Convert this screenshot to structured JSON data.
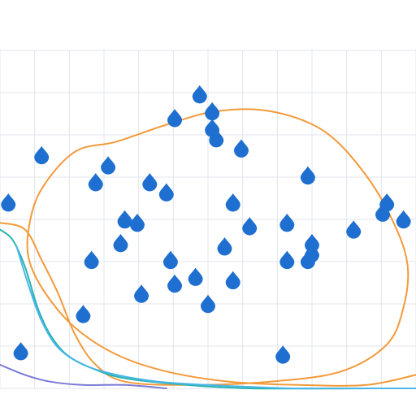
{
  "chart_data": {
    "type": "scatter",
    "title_parts": [],
    "xlabel": "",
    "ylabel": "",
    "grid": true,
    "xlim": [
      0,
      100
    ],
    "ylim": [
      0,
      100
    ],
    "x_ticks": [],
    "series": [
      {
        "kind": "points",
        "color": "#1f6fd0",
        "points": [
          [
            48,
            87
          ],
          [
            51,
            82
          ],
          [
            42,
            80
          ],
          [
            51,
            77
          ],
          [
            52,
            74
          ],
          [
            58,
            71
          ],
          [
            10,
            69
          ],
          [
            26,
            66
          ],
          [
            23,
            61
          ],
          [
            36,
            61
          ],
          [
            40,
            58
          ],
          [
            74,
            63
          ],
          [
            2,
            55
          ],
          [
            56,
            55
          ],
          [
            93,
            55
          ],
          [
            92,
            52
          ],
          [
            30,
            50
          ],
          [
            33,
            49
          ],
          [
            69,
            49
          ],
          [
            60,
            48
          ],
          [
            85,
            47
          ],
          [
            75,
            43
          ],
          [
            54,
            42
          ],
          [
            29,
            43
          ],
          [
            75,
            40
          ],
          [
            22,
            38
          ],
          [
            41,
            38
          ],
          [
            69,
            38
          ],
          [
            74,
            38
          ],
          [
            47,
            33
          ],
          [
            56,
            32
          ],
          [
            42,
            31
          ],
          [
            34,
            28
          ],
          [
            50,
            25
          ],
          [
            20,
            22
          ],
          [
            5,
            11
          ],
          [
            68,
            10
          ],
          [
            97,
            50
          ]
        ]
      },
      {
        "kind": "line",
        "color": "#f39a3a",
        "points": [
          [
            0,
            49
          ],
          [
            6,
            47
          ],
          [
            10,
            38
          ],
          [
            14,
            28
          ],
          [
            18,
            16
          ],
          [
            23,
            7
          ],
          [
            30,
            2
          ],
          [
            45,
            1
          ],
          [
            65,
            2
          ],
          [
            82,
            5
          ],
          [
            93,
            13
          ],
          [
            97,
            24
          ],
          [
            98,
            36
          ],
          [
            95,
            48
          ],
          [
            88,
            63
          ],
          [
            78,
            76
          ],
          [
            65,
            82
          ],
          [
            52,
            82
          ],
          [
            40,
            78
          ],
          [
            28,
            73
          ],
          [
            18,
            70
          ],
          [
            10,
            59
          ],
          [
            7,
            48
          ],
          [
            7,
            38
          ],
          [
            11,
            28
          ],
          [
            18,
            18
          ],
          [
            28,
            10
          ],
          [
            40,
            5
          ],
          [
            55,
            2
          ],
          [
            72,
            1
          ],
          [
            88,
            1
          ],
          [
            100,
            4
          ]
        ]
      },
      {
        "kind": "line",
        "color": "#27b3b0",
        "points": [
          [
            0,
            47
          ],
          [
            3,
            44
          ],
          [
            6,
            36
          ],
          [
            9,
            24
          ],
          [
            12,
            16
          ],
          [
            16,
            10
          ],
          [
            22,
            6
          ],
          [
            30,
            3
          ],
          [
            45,
            1
          ],
          [
            60,
            0
          ],
          [
            80,
            0
          ],
          [
            100,
            0
          ]
        ]
      },
      {
        "kind": "line",
        "color": "#4bb6e8",
        "points": [
          [
            4,
            42
          ],
          [
            7,
            30
          ],
          [
            10,
            20
          ],
          [
            14,
            12
          ],
          [
            20,
            7
          ],
          [
            28,
            4
          ],
          [
            38,
            2
          ],
          [
            50,
            1
          ],
          [
            70,
            0
          ],
          [
            90,
            0
          ],
          [
            100,
            0
          ]
        ]
      },
      {
        "kind": "line",
        "color": "#7b7bd6",
        "points": [
          [
            0,
            7
          ],
          [
            6,
            4
          ],
          [
            12,
            2
          ],
          [
            20,
            1
          ],
          [
            30,
            1
          ],
          [
            40,
            0
          ]
        ]
      }
    ]
  }
}
